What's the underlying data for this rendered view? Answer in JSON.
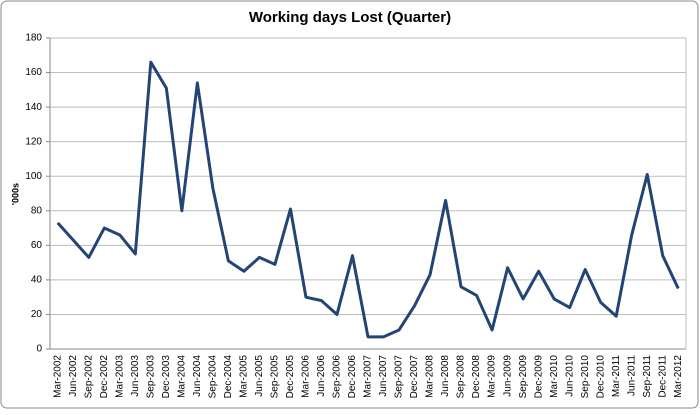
{
  "chart_data": {
    "type": "line",
    "title": "Working days Lost (Quarter)",
    "y_label": "'000s",
    "categories": [
      "Mar-2002",
      "Jun-2002",
      "Sep-2002",
      "Dec-2002",
      "Mar-2003",
      "Jun-2003",
      "Sep-2003",
      "Dec-2003",
      "Mar-2004",
      "Jun-2004",
      "Sep-2004",
      "Dec-2004",
      "Mar-2005",
      "Jun-2005",
      "Sep-2005",
      "Dec-2005",
      "Mar-2006",
      "Jun-2006",
      "Sep-2006",
      "Dec-2006",
      "Mar-2007",
      "Jun-2007",
      "Sep-2007",
      "Dec-2007",
      "Mar-2008",
      "Jun-2008",
      "Sep-2008",
      "Dec-2008",
      "Mar-2009",
      "Jun-2009",
      "Sep-2009",
      "Dec-2009",
      "Mar-2010",
      "Jun-2010",
      "Sep-2010",
      "Dec-2010",
      "Mar-2011",
      "Jun-2011",
      "Sep-2011",
      "Dec-2011",
      "Mar-2012"
    ],
    "values": [
      73,
      63,
      53,
      70,
      66,
      55,
      166,
      151,
      80,
      154,
      93,
      51,
      45,
      53,
      49,
      81,
      30,
      28,
      20,
      54,
      7,
      7,
      11,
      25,
      43,
      86,
      36,
      31,
      11,
      47,
      29,
      45,
      29,
      24,
      46,
      27,
      19,
      66,
      101,
      54,
      35
    ],
    "color": "#234576",
    "ylim": [
      0,
      180
    ],
    "yticks": [
      0,
      20,
      40,
      60,
      80,
      100,
      120,
      140,
      160,
      180
    ],
    "grid": true
  }
}
